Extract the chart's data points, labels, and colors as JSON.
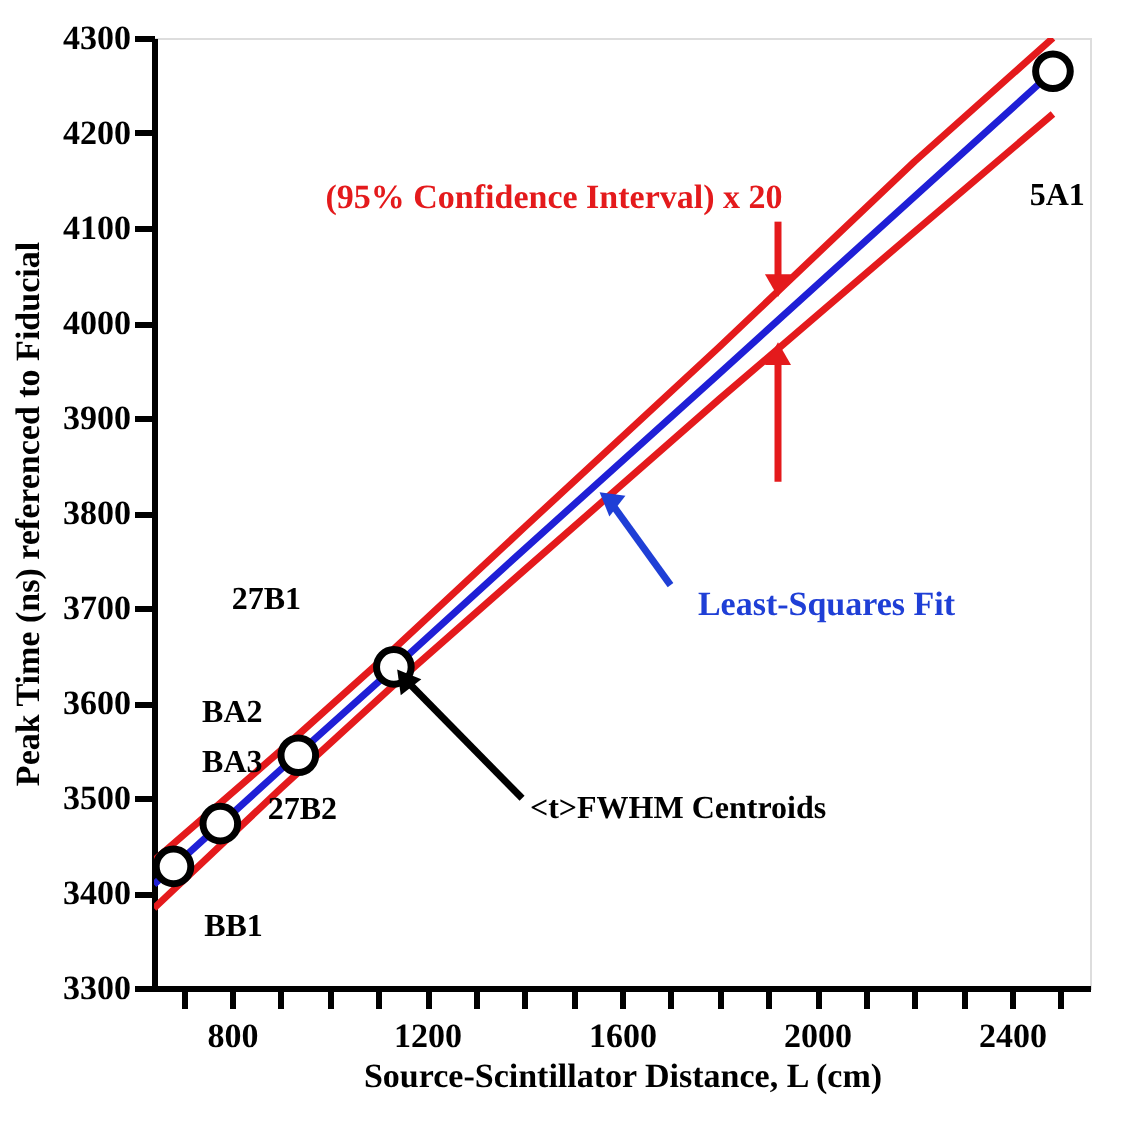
{
  "chart_data": {
    "type": "scatter",
    "xlabel": "Source-Scintillator Distance, L (cm)",
    "ylabel": "Peak Time (ns) referenced to Fiducial",
    "xlim": [
      640,
      2560
    ],
    "ylim": [
      3300,
      4300
    ],
    "xticks": [
      {
        "value": 700,
        "label": null
      },
      800,
      {
        "value": 900,
        "label": null
      },
      {
        "value": 1000,
        "label": null
      },
      {
        "value": 1100,
        "label": null
      },
      1200,
      {
        "value": 1300,
        "label": null
      },
      {
        "value": 1400,
        "label": null
      },
      {
        "value": 1500,
        "label": null
      },
      1600,
      {
        "value": 1700,
        "label": null
      },
      {
        "value": 1800,
        "label": null
      },
      {
        "value": 1900,
        "label": null
      },
      2000,
      {
        "value": 2100,
        "label": null
      },
      {
        "value": 2200,
        "label": null
      },
      {
        "value": 2300,
        "label": null
      },
      2400,
      {
        "value": 2500,
        "label": null
      }
    ],
    "yticks": [
      3300,
      3400,
      3500,
      3600,
      3700,
      3800,
      3900,
      4000,
      4100,
      4200,
      4300
    ],
    "grid": false,
    "series": [
      {
        "marker": "circle",
        "color": "#000000",
        "x": [
          680,
          776,
          936,
          1132,
          2484
        ],
        "values": [
          3428,
          3473,
          3545,
          3638,
          4265
        ]
      },
      {
        "type": "line",
        "color": "#1f1fd6",
        "x": [
          640,
          900,
          1130,
          1400,
          1800,
          2200,
          2484
        ],
        "values": [
          3409,
          3530,
          3636,
          3762,
          3947,
          4133,
          4265
        ]
      },
      {
        "type": "line",
        "color": "#e41a1c",
        "x": [
          640,
          900,
          1130,
          1400,
          1800,
          2200,
          2484
        ],
        "values": [
          3434,
          3550,
          3656,
          3785,
          3975,
          4170,
          4300
        ]
      },
      {
        "type": "line",
        "color": "#e41a1c",
        "x": [
          640,
          900,
          1130,
          1400,
          1800,
          2200,
          2484
        ],
        "values": [
          3384,
          3510,
          3618,
          3740,
          3920,
          4096,
          4220
        ]
      }
    ],
    "annotations": [
      {
        "text": "BB1",
        "x": 680,
        "y": 3428
      },
      {
        "text": "BA3",
        "x": 776,
        "y": 3473
      },
      {
        "text": "BA2",
        "x": 776,
        "y": 3473
      },
      {
        "text": "27B2",
        "x": 936,
        "y": 3545
      },
      "27B1",
      "5A1",
      {
        "text": "(95% Confidence Interval) x 20",
        "x": 1920,
        "y": 4033
      },
      {
        "text": "Least-Squares Fit",
        "x": 1560,
        "y": 3823
      },
      {
        "text": "<t>FWHM Centroids",
        "x": 1153,
        "y": 3626
      }
    ]
  }
}
